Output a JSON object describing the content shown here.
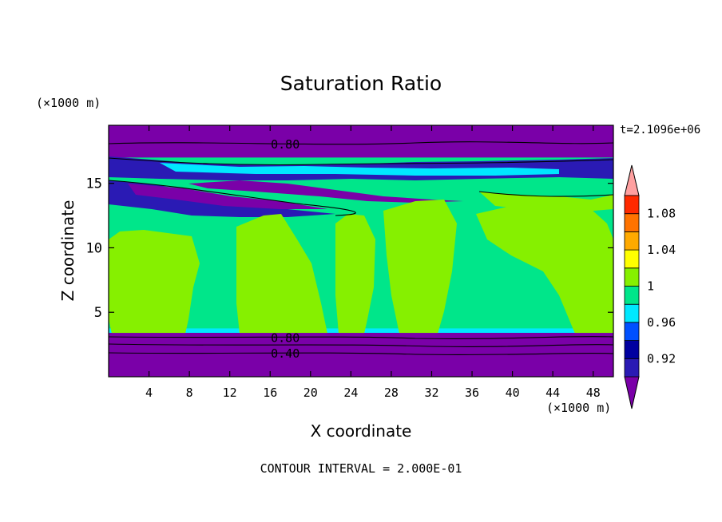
{
  "chart_data": {
    "type": "heatmap",
    "title": "Saturation Ratio",
    "xlabel": "X coordinate",
    "ylabel": "Z coordinate",
    "x_unit": "(×1000 m)",
    "y_unit": "(×1000 m)",
    "time_label": "t=2.1096e+06",
    "footer": "CONTOUR INTERVAL = 2.000E-01",
    "xlim": [
      0,
      50
    ],
    "ylim": [
      0,
      19.5
    ],
    "x_ticks": [
      4,
      8,
      12,
      16,
      20,
      24,
      28,
      32,
      36,
      40,
      44,
      48
    ],
    "y_ticks": [
      5,
      10,
      15
    ],
    "contour_labels": [
      {
        "text": "0.80",
        "x": 17.5,
        "y": 18.0
      },
      {
        "text": "0.80",
        "x": 17.5,
        "y": 3.0
      },
      {
        "text": "0.40",
        "x": 17.5,
        "y": 1.8
      }
    ],
    "colorbar": {
      "tick_labels": [
        "0.92",
        "0.96",
        "1",
        "1.04",
        "1.08"
      ],
      "colors": [
        "#7a00a8",
        "#2a1ab4",
        "#0000a0",
        "#0050ff",
        "#00e8ff",
        "#00e68a",
        "#86f000",
        "#ffff00",
        "#ffaa00",
        "#ff7300",
        "#ff2a00",
        "#ffa0a0"
      ]
    },
    "colors": {
      "background": "#7a00a8",
      "band_low": "#00e68a",
      "band_mid": "#86f000",
      "band_blue": "#2a1ab4",
      "band_cyan": "#00e8ff"
    }
  }
}
